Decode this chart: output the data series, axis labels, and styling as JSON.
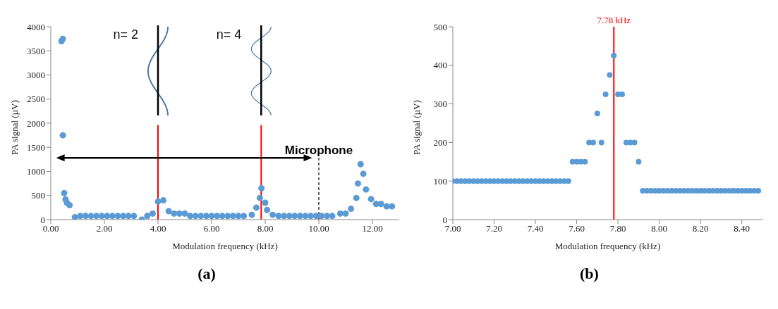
{
  "chart_data": [
    {
      "type": "scatter",
      "xlabel": "Modulation frequency (kHz)",
      "ylabel": "PA signal (µV)",
      "marker": "circle",
      "xlim": [
        0,
        13
      ],
      "xticks": [
        {
          "value": 0,
          "label": "0.00"
        },
        {
          "value": 2,
          "label": "2.00"
        },
        {
          "value": 4,
          "label": "4.00"
        },
        {
          "value": 6,
          "label": "6.00"
        },
        {
          "value": 8,
          "label": "8.00"
        },
        {
          "value": 10,
          "label": "10.00"
        },
        {
          "value": 12,
          "label": "12.00"
        }
      ],
      "ylim": [
        0,
        4000
      ],
      "yticks": [
        0,
        500,
        1000,
        1500,
        2000,
        2500,
        3000,
        3500,
        4000
      ],
      "series": [
        {
          "color": "#5b9bd5",
          "x": [
            0.4,
            0.45,
            0.45,
            0.5,
            0.55,
            0.6,
            0.7,
            0.9,
            1.1,
            1.3,
            1.5,
            1.7,
            1.9,
            2.1,
            2.3,
            2.5,
            2.7,
            2.9,
            3.1,
            3.4,
            3.6,
            3.8,
            4.0,
            4.2,
            4.4,
            4.6,
            4.8,
            5.0,
            5.2,
            5.4,
            5.6,
            5.8,
            6.0,
            6.2,
            6.4,
            6.6,
            6.8,
            7.0,
            7.2,
            7.5,
            7.67,
            7.8,
            7.86,
            8.0,
            8.07,
            8.28,
            8.5,
            8.7,
            8.9,
            9.1,
            9.3,
            9.5,
            9.7,
            9.9,
            10.1,
            10.3,
            10.5,
            10.8,
            11.0,
            11.2,
            11.4,
            11.46,
            11.56,
            11.66,
            11.76,
            11.95,
            12.14,
            12.32,
            12.53,
            12.73
          ],
          "values": [
            3700,
            3750,
            1750,
            550,
            420,
            350,
            300,
            50,
            75,
            75,
            75,
            75,
            75,
            75,
            75,
            75,
            75,
            75,
            75,
            0,
            75,
            125,
            375,
            400,
            175,
            125,
            125,
            125,
            75,
            75,
            75,
            75,
            75,
            75,
            75,
            75,
            75,
            75,
            75,
            100,
            250,
            450,
            650,
            350,
            200,
            100,
            75,
            75,
            75,
            75,
            75,
            75,
            75,
            75,
            75,
            75,
            75,
            125,
            125,
            225,
            450,
            750,
            1150,
            950,
            625,
            425,
            325,
            325,
            275,
            275
          ]
        }
      ],
      "ref_lines": [
        {
          "axis": "x",
          "value": 4.0,
          "color": "#ff0000"
        },
        {
          "axis": "x",
          "value": 7.85,
          "color": "#ff0000"
        },
        {
          "axis": "x",
          "value": 10.0,
          "label": "Microphone",
          "color": "#000000",
          "line_style": "dashed"
        }
      ],
      "annotations": [
        "n= 2",
        "n= 4",
        "(a)"
      ]
    },
    {
      "type": "scatter",
      "xlabel": "Modulation frequency (kHz)",
      "ylabel": "PA signal (µV)",
      "marker": "circle",
      "xlim": [
        7.0,
        8.5
      ],
      "xticks": [
        {
          "value": 7.0,
          "label": "7.00"
        },
        {
          "value": 7.2,
          "label": "7.20"
        },
        {
          "value": 7.4,
          "label": "7.40"
        },
        {
          "value": 7.6,
          "label": "7.60"
        },
        {
          "value": 7.8,
          "label": "7.80"
        },
        {
          "value": 8.0,
          "label": "8.00"
        },
        {
          "value": 8.2,
          "label": "8.20"
        },
        {
          "value": 8.4,
          "label": "8.40"
        }
      ],
      "ylim": [
        0,
        500
      ],
      "yticks": [
        0,
        100,
        200,
        300,
        400,
        500
      ],
      "series": [
        {
          "color": "#5b9bd5",
          "x": [
            7.0,
            7.02,
            7.04,
            7.06,
            7.08,
            7.1,
            7.12,
            7.14,
            7.16,
            7.18,
            7.2,
            7.22,
            7.24,
            7.26,
            7.28,
            7.3,
            7.32,
            7.34,
            7.36,
            7.38,
            7.4,
            7.42,
            7.44,
            7.46,
            7.48,
            7.5,
            7.52,
            7.54,
            7.56,
            7.58,
            7.6,
            7.62,
            7.64,
            7.66,
            7.68,
            7.7,
            7.72,
            7.74,
            7.76,
            7.78,
            7.8,
            7.82,
            7.84,
            7.86,
            7.88,
            7.9,
            7.92,
            7.94,
            7.96,
            7.98,
            8.0,
            8.02,
            8.04,
            8.06,
            8.08,
            8.1,
            8.12,
            8.14,
            8.16,
            8.18,
            8.2,
            8.22,
            8.24,
            8.26,
            8.28,
            8.3,
            8.32,
            8.34,
            8.36,
            8.38,
            8.4,
            8.42,
            8.44,
            8.46,
            8.48
          ],
          "values": [
            100,
            100,
            100,
            100,
            100,
            100,
            100,
            100,
            100,
            100,
            100,
            100,
            100,
            100,
            100,
            100,
            100,
            100,
            100,
            100,
            100,
            100,
            100,
            100,
            100,
            100,
            100,
            100,
            100,
            150,
            150,
            150,
            150,
            200,
            200,
            275,
            200,
            325,
            375,
            425,
            325,
            325,
            200,
            200,
            200,
            150,
            75,
            75,
            75,
            75,
            75,
            75,
            75,
            75,
            75,
            75,
            75,
            75,
            75,
            75,
            75,
            75,
            75,
            75,
            75,
            75,
            75,
            75,
            75,
            75,
            75,
            75,
            75,
            75,
            75
          ]
        }
      ],
      "ref_lines": [
        {
          "axis": "x",
          "value": 7.78,
          "label": "7.78 kHz",
          "color": "#ff0000"
        }
      ],
      "annotations": [
        "(b)"
      ]
    }
  ]
}
